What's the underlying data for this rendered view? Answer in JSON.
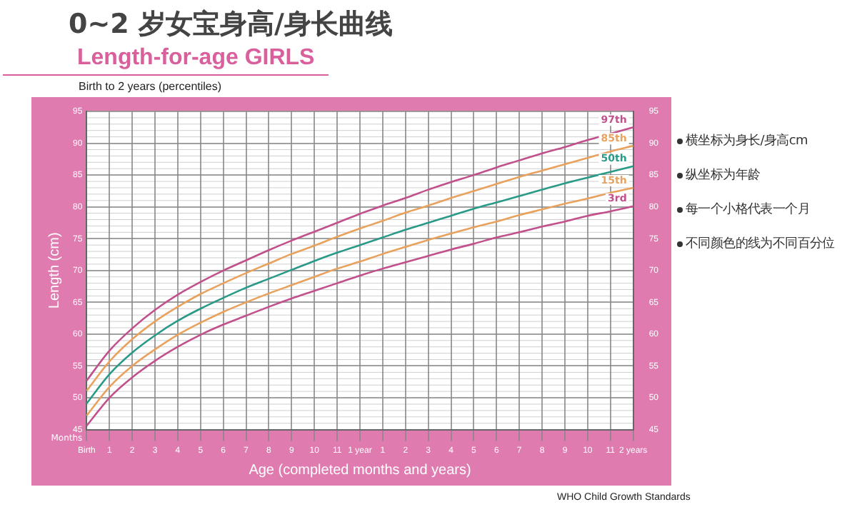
{
  "chart_data": {
    "type": "line",
    "title": "0~2 岁女宝身高/身长曲线",
    "subtitle": "Length-for-age GIRLS",
    "xlabel": "Age (completed months and years)",
    "ylabel": "Length (cm)",
    "categories": [
      "Birth",
      "1",
      "2",
      "3",
      "4",
      "5",
      "6",
      "7",
      "8",
      "9",
      "10",
      "11",
      "1 year",
      "1",
      "2",
      "3",
      "4",
      "5",
      "6",
      "7",
      "8",
      "9",
      "10",
      "11",
      "2 years"
    ],
    "series": [
      {
        "name": "97th",
        "color": "#c2508c",
        "values": [
          52.7,
          57.4,
          60.9,
          63.8,
          66.2,
          68.2,
          70.0,
          71.6,
          73.2,
          74.7,
          76.1,
          77.5,
          78.9,
          80.2,
          81.4,
          82.7,
          83.9,
          85.0,
          86.2,
          87.3,
          88.4,
          89.4,
          90.5,
          91.5,
          92.5
        ]
      },
      {
        "name": "85th",
        "color": "#e8a25e",
        "values": [
          51.1,
          55.7,
          59.2,
          62.0,
          64.3,
          66.3,
          68.0,
          69.6,
          71.1,
          72.6,
          73.9,
          75.3,
          76.6,
          77.8,
          79.1,
          80.2,
          81.4,
          82.5,
          83.6,
          84.7,
          85.7,
          86.7,
          87.7,
          88.7,
          89.6
        ]
      },
      {
        "name": "50th",
        "color": "#2a9a88",
        "values": [
          49.1,
          53.7,
          57.1,
          59.8,
          62.1,
          64.0,
          65.7,
          67.3,
          68.7,
          70.1,
          71.5,
          72.8,
          74.0,
          75.2,
          76.4,
          77.5,
          78.6,
          79.7,
          80.7,
          81.7,
          82.7,
          83.7,
          84.6,
          85.5,
          86.4
        ]
      },
      {
        "name": "15th",
        "color": "#e8a25e",
        "values": [
          47.2,
          51.7,
          55.0,
          57.6,
          59.9,
          61.8,
          63.5,
          65.0,
          66.4,
          67.7,
          69.0,
          70.3,
          71.4,
          72.6,
          73.7,
          74.8,
          75.8,
          76.8,
          77.7,
          78.7,
          79.6,
          80.5,
          81.3,
          82.2,
          83.0
        ]
      },
      {
        "name": "3rd",
        "color": "#c2508c",
        "values": [
          45.6,
          50.0,
          53.2,
          55.8,
          58.0,
          59.9,
          61.5,
          62.9,
          64.3,
          65.6,
          66.8,
          68.0,
          69.2,
          70.3,
          71.3,
          72.3,
          73.3,
          74.2,
          75.2,
          76.0,
          76.9,
          77.7,
          78.6,
          79.3,
          80.1
        ]
      }
    ],
    "ylim": [
      45,
      95
    ],
    "yticks": [
      45,
      50,
      55,
      60,
      65,
      70,
      75,
      80,
      85,
      90,
      95
    ],
    "y2lim": [
      45,
      95
    ],
    "y2ticks": [
      45,
      50,
      55,
      60,
      65,
      70,
      75,
      80,
      85,
      90,
      95
    ],
    "grid": true,
    "legend": false,
    "marker": "none",
    "line_style": "solid",
    "annotations": [
      "Birth to 2 years (percentiles)",
      "Months",
      "横坐标为身长/身高cm",
      "纵坐标为年龄",
      "每一个小格代表一个月",
      "不同颜色的线为不同百分位",
      "WHO Child Growth Standards"
    ]
  }
}
